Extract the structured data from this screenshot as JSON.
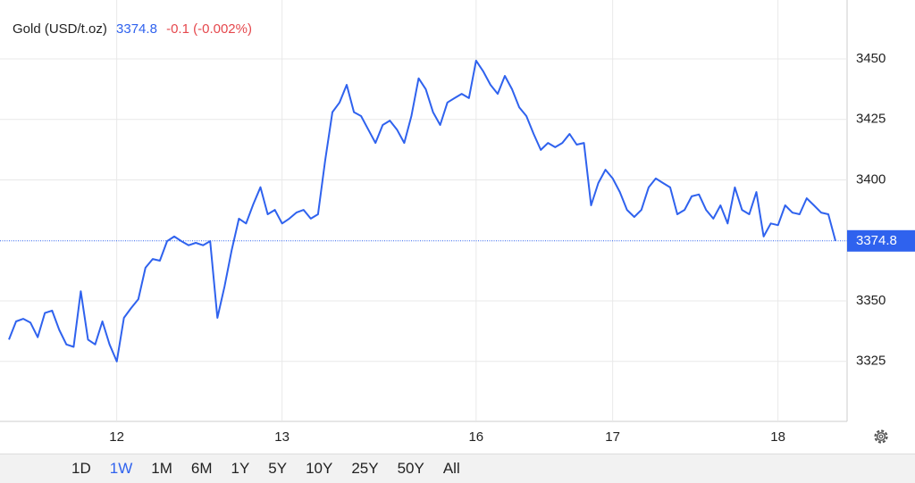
{
  "chart_data": {
    "type": "line",
    "title": "Gold (USD/t.oz)",
    "price": "3374.8",
    "change": "-0.1 (-0.002%)",
    "last_value": 3374.8,
    "color": "#2f62ee",
    "change_color": "#e5484d",
    "xlim": [
      0,
      115
    ],
    "xticks": [
      {
        "value": 15,
        "label": "12"
      },
      {
        "value": 38,
        "label": "13"
      },
      {
        "value": 65,
        "label": "16"
      },
      {
        "value": 84,
        "label": "17"
      },
      {
        "value": 107,
        "label": "18"
      }
    ],
    "ylim": [
      3300,
      3474
    ],
    "yticks": [
      3325,
      3350,
      3400,
      3425,
      3450
    ],
    "grid": true,
    "values": [
      3334,
      3341.5,
      3342.6,
      3341,
      3335,
      3345,
      3346,
      3338,
      3332,
      3331,
      3354,
      3334,
      3332,
      3341.5,
      3332,
      3325,
      3343,
      3347,
      3350.7,
      3363.7,
      3367.3,
      3366.6,
      3374.7,
      3376.6,
      3374.7,
      3373,
      3374,
      3373,
      3374.7,
      3343,
      3356,
      3371,
      3384,
      3382,
      3390,
      3397,
      3385.8,
      3387.6,
      3382,
      3384,
      3386.5,
      3387.6,
      3384,
      3385.8,
      3408,
      3428,
      3432,
      3439.3,
      3428,
      3426.4,
      3420.8,
      3415.3,
      3422.7,
      3424.5,
      3420.8,
      3415.3,
      3426.4,
      3442,
      3437.5,
      3428,
      3422.7,
      3432,
      3433.8,
      3435.6,
      3433.8,
      3449.3,
      3444.8,
      3439.3,
      3435.6,
      3443,
      3437.5,
      3430,
      3426.4,
      3419,
      3412.4,
      3415.3,
      3413.5,
      3415.3,
      3419,
      3414.6,
      3415.3,
      3389.5,
      3398.7,
      3404.2,
      3400.6,
      3395,
      3387.6,
      3384.7,
      3387.6,
      3396.9,
      3400.6,
      3398.7,
      3396.9,
      3385.8,
      3387.6,
      3393.2,
      3394,
      3387.6,
      3384,
      3389.5,
      3382,
      3396.9,
      3387.6,
      3385.8,
      3395,
      3376.6,
      3382,
      3381.3,
      3389.5,
      3386.5,
      3385.8,
      3392.4,
      3389.5,
      3386.5,
      3385.8,
      3374.8
    ],
    "ranges": [
      "1D",
      "1W",
      "1M",
      "6M",
      "1Y",
      "5Y",
      "10Y",
      "25Y",
      "50Y",
      "All"
    ],
    "active_range": 1
  }
}
